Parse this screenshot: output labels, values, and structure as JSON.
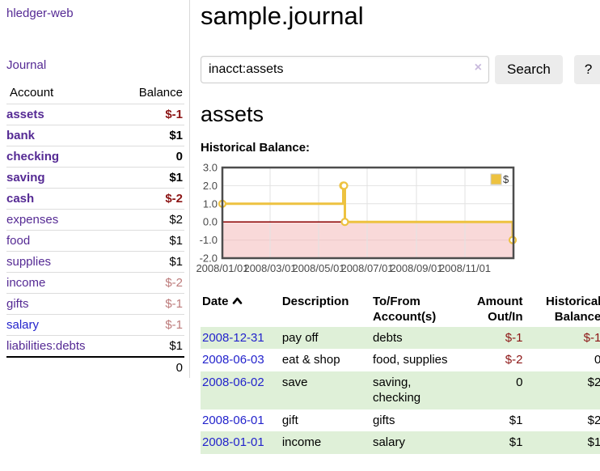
{
  "sidebar": {
    "brand": "hledger-web",
    "journal_link": "Journal",
    "accounts": {
      "headers": {
        "account": "Account",
        "balance": "Balance"
      },
      "rows": [
        {
          "name": "assets",
          "depth": 1,
          "matched": true,
          "balance": "$-1"
        },
        {
          "name": "bank",
          "depth": 2,
          "matched": true,
          "balance": "$1"
        },
        {
          "name": "checking",
          "depth": 3,
          "matched": true,
          "balance": "0"
        },
        {
          "name": "saving",
          "depth": 3,
          "matched": true,
          "balance": "$1"
        },
        {
          "name": "cash",
          "depth": 2,
          "matched": true,
          "balance": "$-2"
        },
        {
          "name": "expenses",
          "depth": 1,
          "matched": false,
          "balance": "$2"
        },
        {
          "name": "food",
          "depth": 2,
          "matched": false,
          "balance": "$1"
        },
        {
          "name": "supplies",
          "depth": 2,
          "matched": false,
          "balance": "$1"
        },
        {
          "name": "income",
          "depth": 1,
          "matched": false,
          "balance": "$-2"
        },
        {
          "name": "gifts",
          "depth": 2,
          "matched": false,
          "balance": "$-1"
        },
        {
          "name": "salary",
          "depth": 2,
          "matched": false,
          "balance": "$-1"
        },
        {
          "name": "liabilities:debts",
          "depth": 1,
          "matched": false,
          "balance": "$1"
        }
      ],
      "total": "0"
    }
  },
  "header": {
    "title": "sample.journal"
  },
  "search": {
    "value": "inacct:assets",
    "clear": "×",
    "search_button": "Search",
    "help_button": "?"
  },
  "account_page": {
    "title": "assets"
  },
  "chart_data": {
    "type": "line",
    "title": "Historical Balance:",
    "series": [
      {
        "name": "$",
        "color": "#edc240",
        "style": "steps-with-markers",
        "points": [
          [
            "2008/01/01",
            1
          ],
          [
            "2008/06/01",
            2
          ],
          [
            "2008/06/02",
            2
          ],
          [
            "2008/06/03",
            0
          ],
          [
            "2008/12/31",
            -1
          ]
        ]
      }
    ],
    "x_range": [
      "2008/01/01",
      "2009/01/01"
    ],
    "y_range": [
      -2,
      3
    ],
    "y_ticks": [
      3,
      2,
      1,
      0,
      -1,
      -2
    ],
    "x_ticks": [
      "2008/01/01",
      "2008/03/01",
      "2008/05/01",
      "2008/07/01",
      "2008/09/01",
      "2008/11/01"
    ],
    "legend": {
      "label": "$",
      "position": "top-right"
    },
    "grid": true,
    "negative_region_fill": "#f9d9d9",
    "zero_line_color": "#8b0000",
    "plot_border_color": "#4d4d4d",
    "gridline_color": "#e2e2e2"
  },
  "register": {
    "headers": {
      "date": "Date",
      "sort_direction": "ascending",
      "description": "Description",
      "accounts": "To/From Account(s)",
      "amount": "Amount Out/In",
      "balance": "Historical Balance"
    },
    "rows": [
      {
        "date": "2008-12-31",
        "description": "pay off",
        "accounts": "debts",
        "amount": "$-1",
        "balance": "$-1"
      },
      {
        "date": "2008-06-03",
        "description": "eat & shop",
        "accounts": "food, supplies",
        "amount": "$-2",
        "balance": "0"
      },
      {
        "date": "2008-06-02",
        "description": "save",
        "accounts": "saving, checking",
        "amount": "0",
        "balance": "$2"
      },
      {
        "date": "2008-06-01",
        "description": "gift",
        "accounts": "gifts",
        "amount": "$1",
        "balance": "$2"
      },
      {
        "date": "2008-01-01",
        "description": "income",
        "accounts": "salary",
        "amount": "$1",
        "balance": "$1"
      }
    ]
  },
  "colors": {
    "link_purple": "#552a94",
    "link_blue": "#2323cc",
    "negative": "#8c1515",
    "negative_muted": "#bd7b7b",
    "row_green": "#dff0d8",
    "button_bg": "#ececec",
    "divider": "#d9d9d9",
    "chart_yellow": "#edc240"
  }
}
